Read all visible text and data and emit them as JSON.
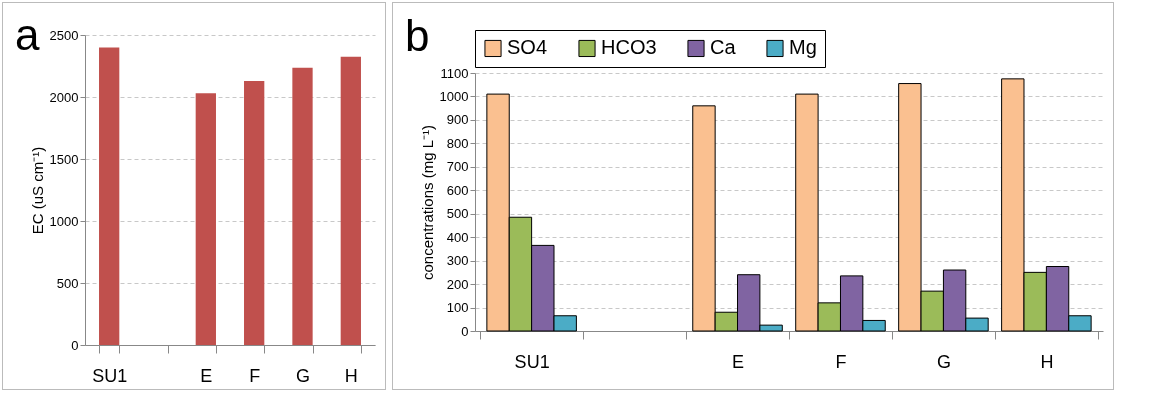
{
  "chart_data": [
    {
      "type": "bar",
      "title": "a",
      "ylabel": "EC (uS cm⁻¹)",
      "categories": [
        "SU1",
        null,
        "E",
        "F",
        "G",
        "H"
      ],
      "series": [
        {
          "color": "#c0504d",
          "values": [
            2400,
            null,
            2030,
            2130,
            2235,
            2325
          ]
        }
      ],
      "ylim": [
        0,
        2500
      ],
      "yticks": [
        0,
        500,
        1000,
        1500,
        2000,
        2500
      ],
      "grid": "y"
    },
    {
      "type": "bar",
      "title": "b",
      "ylabel": "concentrations (mg L⁻¹)",
      "categories": [
        "SU1",
        null,
        "E",
        "F",
        "G",
        "H"
      ],
      "series": [
        {
          "name": "SO4",
          "color": "#fac090",
          "values": [
            1010,
            null,
            960,
            1010,
            1055,
            1075
          ]
        },
        {
          "name": "HCO3",
          "color": "#9bbb59",
          "values": [
            485,
            null,
            80,
            120,
            170,
            250
          ]
        },
        {
          "name": "Ca",
          "color": "#8064a2",
          "values": [
            365,
            null,
            240,
            235,
            260,
            275
          ]
        },
        {
          "name": "Mg",
          "color": "#4bacc6",
          "values": [
            65,
            null,
            25,
            45,
            55,
            65
          ]
        }
      ],
      "ylim": [
        0,
        1100
      ],
      "yticks": [
        0,
        100,
        200,
        300,
        400,
        500,
        600,
        700,
        800,
        900,
        1000,
        1100
      ],
      "grid": "y",
      "legend": "top"
    }
  ]
}
